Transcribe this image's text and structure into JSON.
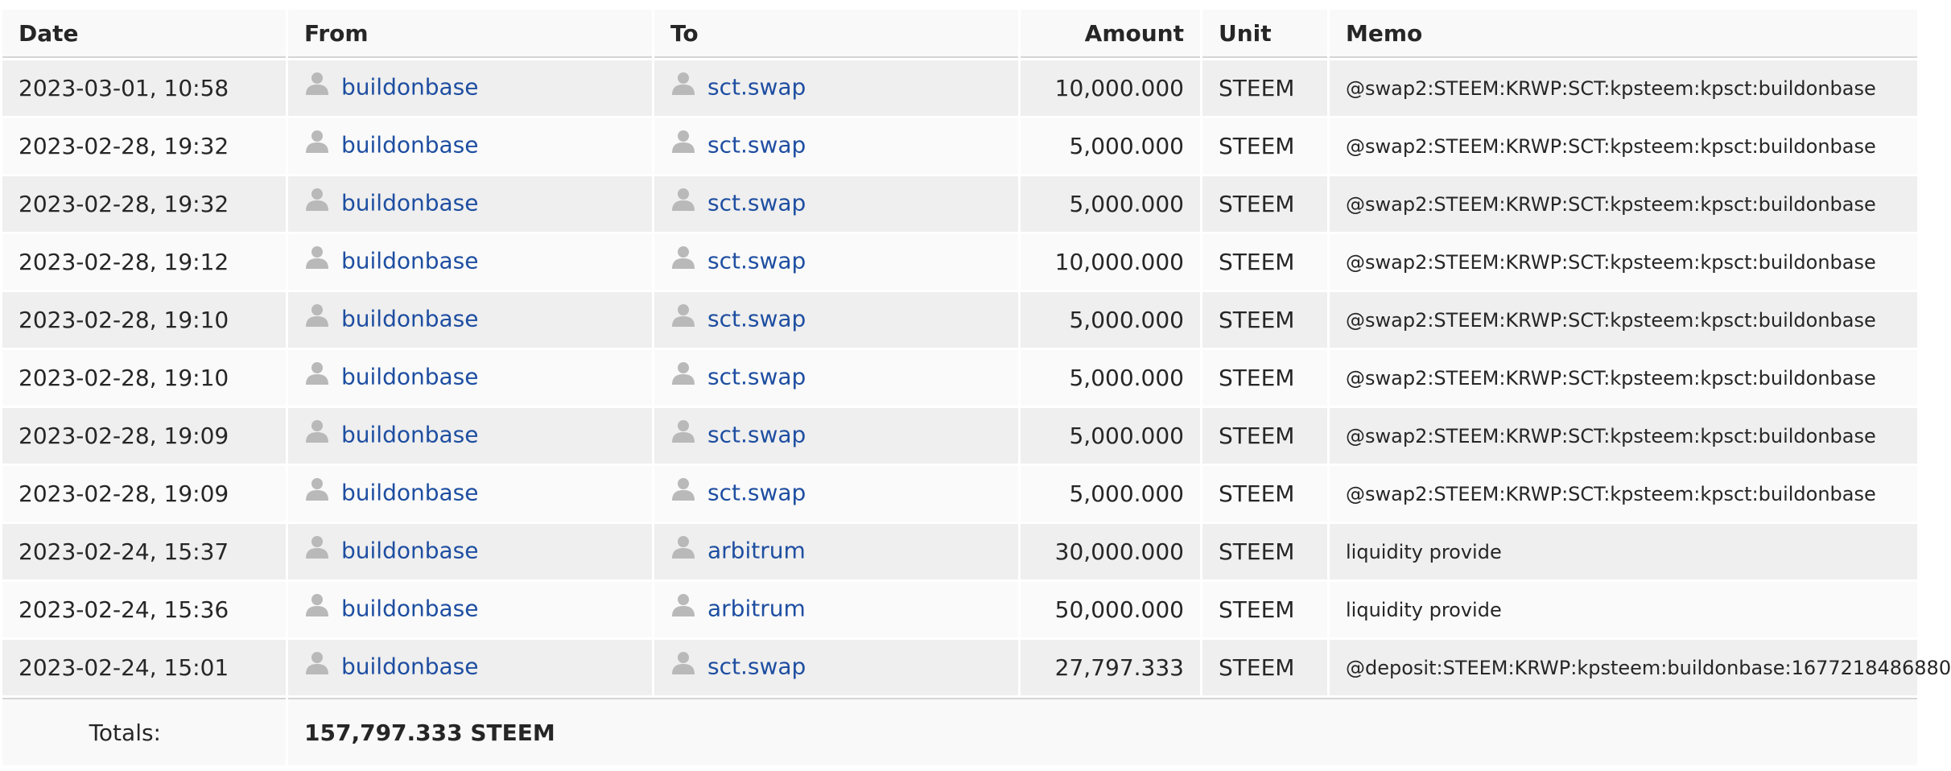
{
  "columns": {
    "date": "Date",
    "from": "From",
    "to": "To",
    "amount": "Amount",
    "unit": "Unit",
    "memo": "Memo"
  },
  "rows": [
    {
      "date": "2023-03-01, 10:58",
      "from": "buildonbase",
      "to": "sct.swap",
      "amount": "10,000.000",
      "unit": "STEEM",
      "memo": "@swap2:STEEM:KRWP:SCT:kpsteem:kpsct:buildonbase"
    },
    {
      "date": "2023-02-28, 19:32",
      "from": "buildonbase",
      "to": "sct.swap",
      "amount": "5,000.000",
      "unit": "STEEM",
      "memo": "@swap2:STEEM:KRWP:SCT:kpsteem:kpsct:buildonbase"
    },
    {
      "date": "2023-02-28, 19:32",
      "from": "buildonbase",
      "to": "sct.swap",
      "amount": "5,000.000",
      "unit": "STEEM",
      "memo": "@swap2:STEEM:KRWP:SCT:kpsteem:kpsct:buildonbase"
    },
    {
      "date": "2023-02-28, 19:12",
      "from": "buildonbase",
      "to": "sct.swap",
      "amount": "10,000.000",
      "unit": "STEEM",
      "memo": "@swap2:STEEM:KRWP:SCT:kpsteem:kpsct:buildonbase"
    },
    {
      "date": "2023-02-28, 19:10",
      "from": "buildonbase",
      "to": "sct.swap",
      "amount": "5,000.000",
      "unit": "STEEM",
      "memo": "@swap2:STEEM:KRWP:SCT:kpsteem:kpsct:buildonbase"
    },
    {
      "date": "2023-02-28, 19:10",
      "from": "buildonbase",
      "to": "sct.swap",
      "amount": "5,000.000",
      "unit": "STEEM",
      "memo": "@swap2:STEEM:KRWP:SCT:kpsteem:kpsct:buildonbase"
    },
    {
      "date": "2023-02-28, 19:09",
      "from": "buildonbase",
      "to": "sct.swap",
      "amount": "5,000.000",
      "unit": "STEEM",
      "memo": "@swap2:STEEM:KRWP:SCT:kpsteem:kpsct:buildonbase"
    },
    {
      "date": "2023-02-28, 19:09",
      "from": "buildonbase",
      "to": "sct.swap",
      "amount": "5,000.000",
      "unit": "STEEM",
      "memo": "@swap2:STEEM:KRWP:SCT:kpsteem:kpsct:buildonbase"
    },
    {
      "date": "2023-02-24, 15:37",
      "from": "buildonbase",
      "to": "arbitrum",
      "amount": "30,000.000",
      "unit": "STEEM",
      "memo": "liquidity provide"
    },
    {
      "date": "2023-02-24, 15:36",
      "from": "buildonbase",
      "to": "arbitrum",
      "amount": "50,000.000",
      "unit": "STEEM",
      "memo": "liquidity provide"
    },
    {
      "date": "2023-02-24, 15:01",
      "from": "buildonbase",
      "to": "sct.swap",
      "amount": "27,797.333",
      "unit": "STEEM",
      "memo": "@deposit:STEEM:KRWP:kpsteem:buildonbase:1677218486880"
    }
  ],
  "totals": {
    "label": "Totals:",
    "value": "157,797.333 STEEM"
  },
  "icons": {
    "account": "user-avatar-icon"
  },
  "colors": {
    "link": "#1e4ea1",
    "row_odd": "#efefef",
    "row_even": "#fafafa",
    "icon": "#b9b9b9"
  }
}
